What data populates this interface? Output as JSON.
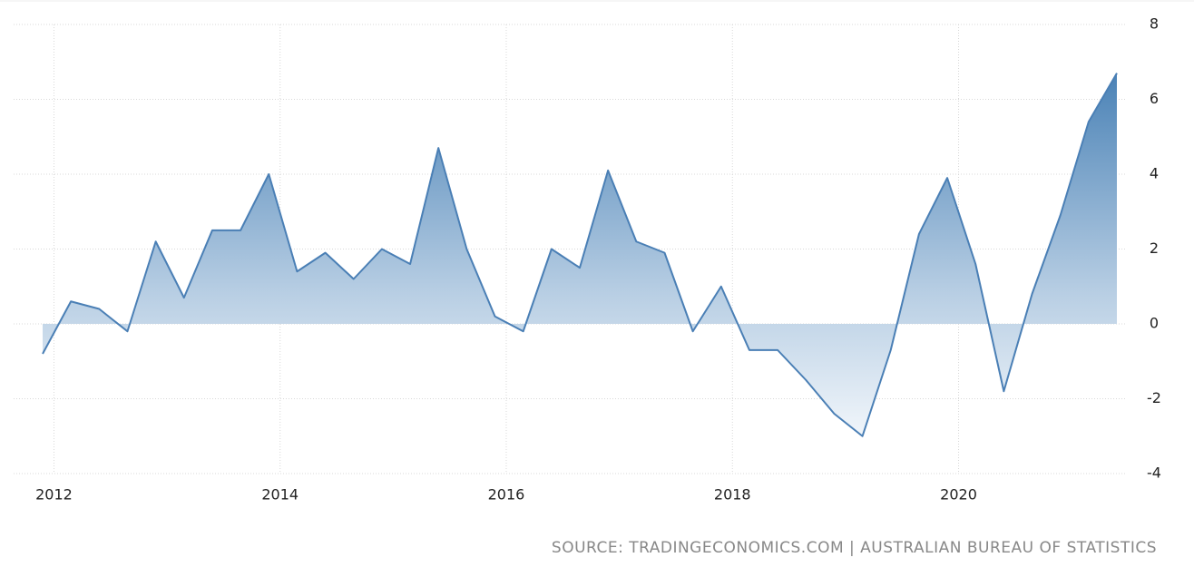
{
  "chart_data": {
    "type": "area",
    "source": "SOURCE: TRADINGECONOMICS.COM | AUSTRALIAN BUREAU OF STATISTICS",
    "categories": [
      "2012",
      null,
      null,
      null,
      null,
      null,
      null,
      null,
      "2014",
      null,
      null,
      null,
      null,
      null,
      null,
      null,
      "2016",
      null,
      null,
      null,
      null,
      null,
      null,
      null,
      "2018",
      null,
      null,
      null,
      null,
      null,
      null,
      null,
      "2020",
      null,
      null,
      null,
      null,
      null,
      null
    ],
    "values": [
      -0.8,
      0.6,
      0.4,
      -0.2,
      2.2,
      0.7,
      2.5,
      2.5,
      4.0,
      1.4,
      1.9,
      1.2,
      2.0,
      1.6,
      4.7,
      2.0,
      0.2,
      -0.2,
      2.0,
      1.5,
      4.1,
      2.2,
      1.9,
      -0.2,
      1.0,
      -0.7,
      -0.7,
      -1.5,
      -2.4,
      -3.0,
      -0.7,
      2.4,
      3.9,
      1.6,
      -1.8,
      0.8,
      2.9,
      5.4,
      6.7
    ],
    "color": "#4a7fb5",
    "ylim": [
      -4,
      8
    ],
    "yticks": [
      -4,
      -2,
      0,
      2,
      4,
      6,
      8
    ],
    "grid": true
  }
}
